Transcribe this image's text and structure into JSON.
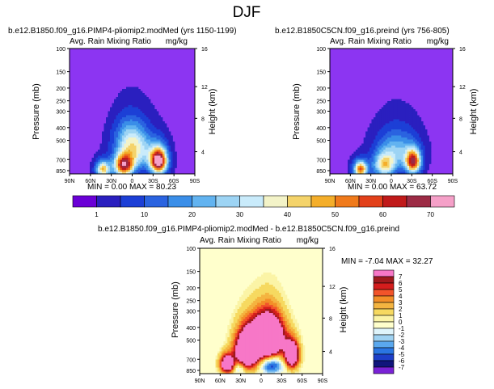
{
  "page": {
    "title": "DJF",
    "label_bar_ticks": [
      "1",
      "10",
      "20",
      "30",
      "40",
      "50",
      "60",
      "70"
    ],
    "diff_bar_ticks": [
      "7",
      "6",
      "5",
      "4",
      "3",
      "2",
      "1",
      "0",
      "-1",
      "-2",
      "-3",
      "-4",
      "-5",
      "-6",
      "-7"
    ]
  },
  "chart_data": [
    {
      "type": "heatmap",
      "title": "b.e12.B1850.f09_g16.PIMP4-pliomip2.modMed (yrs 1150-1199)",
      "subtitle_left": "Avg. Rain Mixing Ratio",
      "subtitle_right": "mg/kg",
      "ylabel": "Pressure (mb)",
      "ylabel_right": "Height (km)",
      "x_ticks": [
        "90N",
        "60N",
        "30N",
        "0",
        "30S",
        "60S",
        "90S"
      ],
      "y_ticks": [
        "100",
        "150",
        "200",
        "250",
        "300",
        "400",
        "500",
        "700",
        "850"
      ],
      "right_ticks": [
        "16",
        "12",
        "8",
        "4"
      ],
      "stats_text": "MIN =    0.00   MAX =   80.23",
      "min": 0.0,
      "max": 80.23,
      "background_color": "#8c35f2",
      "blobs": [
        {
          "lat": -38,
          "p": 720,
          "peak": 80,
          "spread_lat": 12,
          "spread_p": 160
        },
        {
          "lat": 12,
          "p": 780,
          "peak": 62,
          "spread_lat": 14,
          "spread_p": 150
        },
        {
          "lat": 42,
          "p": 830,
          "peak": 45,
          "spread_lat": 10,
          "spread_p": 120
        },
        {
          "lat": -5,
          "p": 600,
          "peak": 34,
          "spread_lat": 26,
          "spread_p": 200
        },
        {
          "lat": 5,
          "p": 450,
          "peak": 14,
          "spread_lat": 20,
          "spread_p": 140
        }
      ]
    },
    {
      "type": "heatmap",
      "title": "b.e12.B1850C5CN.f09_g16.preind (yrs 756-805)",
      "subtitle_left": "Avg. Rain Mixing Ratio",
      "subtitle_right": "mg/kg",
      "ylabel": "Pressure (mb)",
      "ylabel_right": "Height (km)",
      "x_ticks": [
        "90N",
        "60N",
        "30N",
        "0",
        "30S",
        "60S",
        "90S"
      ],
      "y_ticks": [
        "100",
        "150",
        "200",
        "250",
        "300",
        "400",
        "500",
        "700",
        "850"
      ],
      "right_ticks": [
        "16",
        "12",
        "8",
        "4"
      ],
      "stats_text": "MIN =    0.00   MAX =   63.72",
      "min": 0.0,
      "max": 63.72,
      "background_color": "#8c35f2",
      "blobs": [
        {
          "lat": -32,
          "p": 730,
          "peak": 62,
          "spread_lat": 11,
          "spread_p": 150
        },
        {
          "lat": 45,
          "p": 830,
          "peak": 55,
          "spread_lat": 10,
          "spread_p": 120
        },
        {
          "lat": 10,
          "p": 780,
          "peak": 38,
          "spread_lat": 16,
          "spread_p": 160
        },
        {
          "lat": -8,
          "p": 600,
          "peak": 24,
          "spread_lat": 28,
          "spread_p": 200
        }
      ]
    },
    {
      "type": "heatmap",
      "title": "b.e12.B1850.f09_g16.PIMP4-pliomip2.modMed - b.e12.B1850C5CN.f09_g16.preind",
      "subtitle_left": "Avg. Rain Mixing Ratio",
      "subtitle_right": "mg/kg",
      "ylabel": "Pressure (mb)",
      "ylabel_right": "Height (km)",
      "x_ticks": [
        "90N",
        "60N",
        "30N",
        "0",
        "30S",
        "60S",
        "90S"
      ],
      "y_ticks": [
        "100",
        "150",
        "200",
        "250",
        "300",
        "400",
        "500",
        "700",
        "850"
      ],
      "right_ticks": [
        "16",
        "12",
        "8",
        "4"
      ],
      "stats_text": "MIN =   -7.04   MAX =   32.27",
      "min": -7.04,
      "max": 32.27,
      "background_color": "#ffffcc",
      "blobs": [
        {
          "lat": -10,
          "p": 480,
          "peak": 20,
          "spread_lat": 22,
          "spread_p": 170
        },
        {
          "lat": 20,
          "p": 600,
          "peak": 16,
          "spread_lat": 18,
          "spread_p": 200
        },
        {
          "lat": -45,
          "p": 650,
          "peak": 14,
          "spread_lat": 10,
          "spread_p": 150
        },
        {
          "lat": 50,
          "p": 760,
          "peak": 12,
          "spread_lat": 10,
          "spread_p": 120
        },
        {
          "lat": -15,
          "p": 780,
          "peak": -6,
          "spread_lat": 16,
          "spread_p": 110
        },
        {
          "lat": 32,
          "p": 820,
          "peak": -4,
          "spread_lat": 8,
          "spread_p": 90
        }
      ]
    }
  ],
  "colorbar_main": [
    "#6a00d6",
    "#2a1fbf",
    "#1c3fd6",
    "#2a63e0",
    "#3a8ee8",
    "#62b3f0",
    "#9dd4f4",
    "#c9ebfb",
    "#f3f3c8",
    "#f4d36a",
    "#f4ae2a",
    "#f07a1b",
    "#e2401a",
    "#c01a1a",
    "#9c2b45",
    "#f5a0c8"
  ],
  "colorbar_diff": [
    "#f777c7",
    "#a0191d",
    "#d41d1d",
    "#f2542a",
    "#f38e28",
    "#f4b440",
    "#f6d960",
    "#fbf4a6",
    "#ffffcc",
    "#dff4fb",
    "#9fd2f2",
    "#5aa8ee",
    "#2a76e2",
    "#1d3fc8",
    "#10157c",
    "#7a22d6"
  ]
}
